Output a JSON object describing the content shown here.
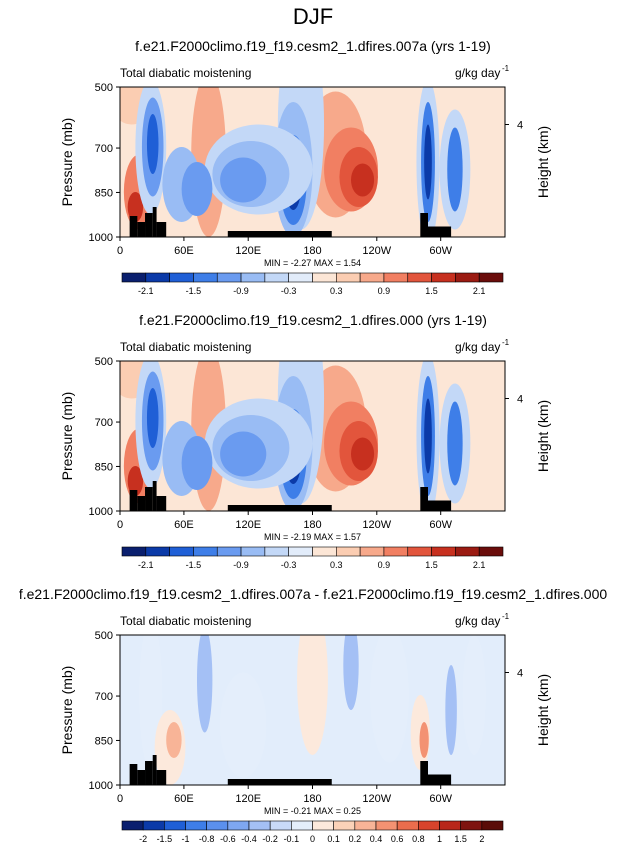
{
  "figure": {
    "title": "DJF"
  },
  "chart_data": [
    {
      "type": "heatmap",
      "title": "f.e21.F2000climo.f19_f19.cesm2_1.dfires.007a (yrs 1-19)",
      "left_string": "Total diabatic moistening",
      "right_string_base": "g/kg day",
      "right_string_exp": "-1",
      "ylabel": "Pressure (mb)",
      "ylabel_right": "Height (km)",
      "yticks": [
        "500",
        "700",
        "850",
        "1000"
      ],
      "yticks_right": [
        "4"
      ],
      "xticks": [
        "0",
        "60E",
        "120E",
        "180",
        "120W",
        "60W"
      ],
      "min_max": "MIN = -2.27  MAX = 1.54",
      "colorbar_labels": [
        "-2.1",
        "-1.5",
        "-0.9",
        "-0.3",
        "0.3",
        "0.9",
        "1.5",
        "2.1"
      ]
    },
    {
      "type": "heatmap",
      "title": "f.e21.F2000climo.f19_f19.cesm2_1.dfires.000 (yrs 1-19)",
      "left_string": "Total diabatic moistening",
      "right_string_base": "g/kg day",
      "right_string_exp": "-1",
      "ylabel": "Pressure (mb)",
      "ylabel_right": "Height (km)",
      "yticks": [
        "500",
        "700",
        "850",
        "1000"
      ],
      "yticks_right": [
        "4"
      ],
      "xticks": [
        "0",
        "60E",
        "120E",
        "180",
        "120W",
        "60W"
      ],
      "min_max": "MIN = -2.19  MAX =  1.57",
      "colorbar_labels": [
        "-2.1",
        "-1.5",
        "-0.9",
        "-0.3",
        "0.3",
        "0.9",
        "1.5",
        "2.1"
      ]
    },
    {
      "type": "heatmap",
      "title": "f.e21.F2000climo.f19_f19.cesm2_1.dfires.007a - f.e21.F2000climo.f19_f19.cesm2_1.dfires.000",
      "left_string": "Total diabatic moistening",
      "right_string_base": "g/kg day",
      "right_string_exp": "-1",
      "ylabel": "Pressure (mb)",
      "ylabel_right": "Height (km)",
      "yticks": [
        "500",
        "700",
        "850",
        "1000"
      ],
      "yticks_right": [
        "4"
      ],
      "xticks": [
        "0",
        "60E",
        "120E",
        "180",
        "120W",
        "60W"
      ],
      "min_max": "MIN = -0.21  MAX =  0.25",
      "colorbar_labels": [
        "-2",
        "-1.5",
        "-1",
        "-0.8",
        "-0.6",
        "-0.4",
        "-0.2",
        "-0.1",
        "0",
        "0.1",
        "0.2",
        "0.4",
        "0.6",
        "0.8",
        "1",
        "1.5",
        "2"
      ]
    }
  ],
  "palette": [
    "#0a1f6e",
    "#0b3aa8",
    "#1f5fd6",
    "#3e7ee8",
    "#6a9bf0",
    "#99bcf4",
    "#c3d8f7",
    "#e2ecfa",
    "#fce6d6",
    "#fbcdb2",
    "#f7a98b",
    "#f17f62",
    "#e2553c",
    "#c7301f",
    "#9b1b12",
    "#6a0d0b"
  ],
  "palette_diff": [
    "#0a1f6e",
    "#0b3aa8",
    "#1f5fd6",
    "#3e7ee8",
    "#5b90ed",
    "#7ea7f1",
    "#a4c0f5",
    "#c9daf8",
    "#e4eefb",
    "#fce9dc",
    "#fbd2b8",
    "#f8b497",
    "#f39272",
    "#ea6d4d",
    "#d8442c",
    "#b8271a",
    "#7e1410",
    "#5a0c08"
  ]
}
